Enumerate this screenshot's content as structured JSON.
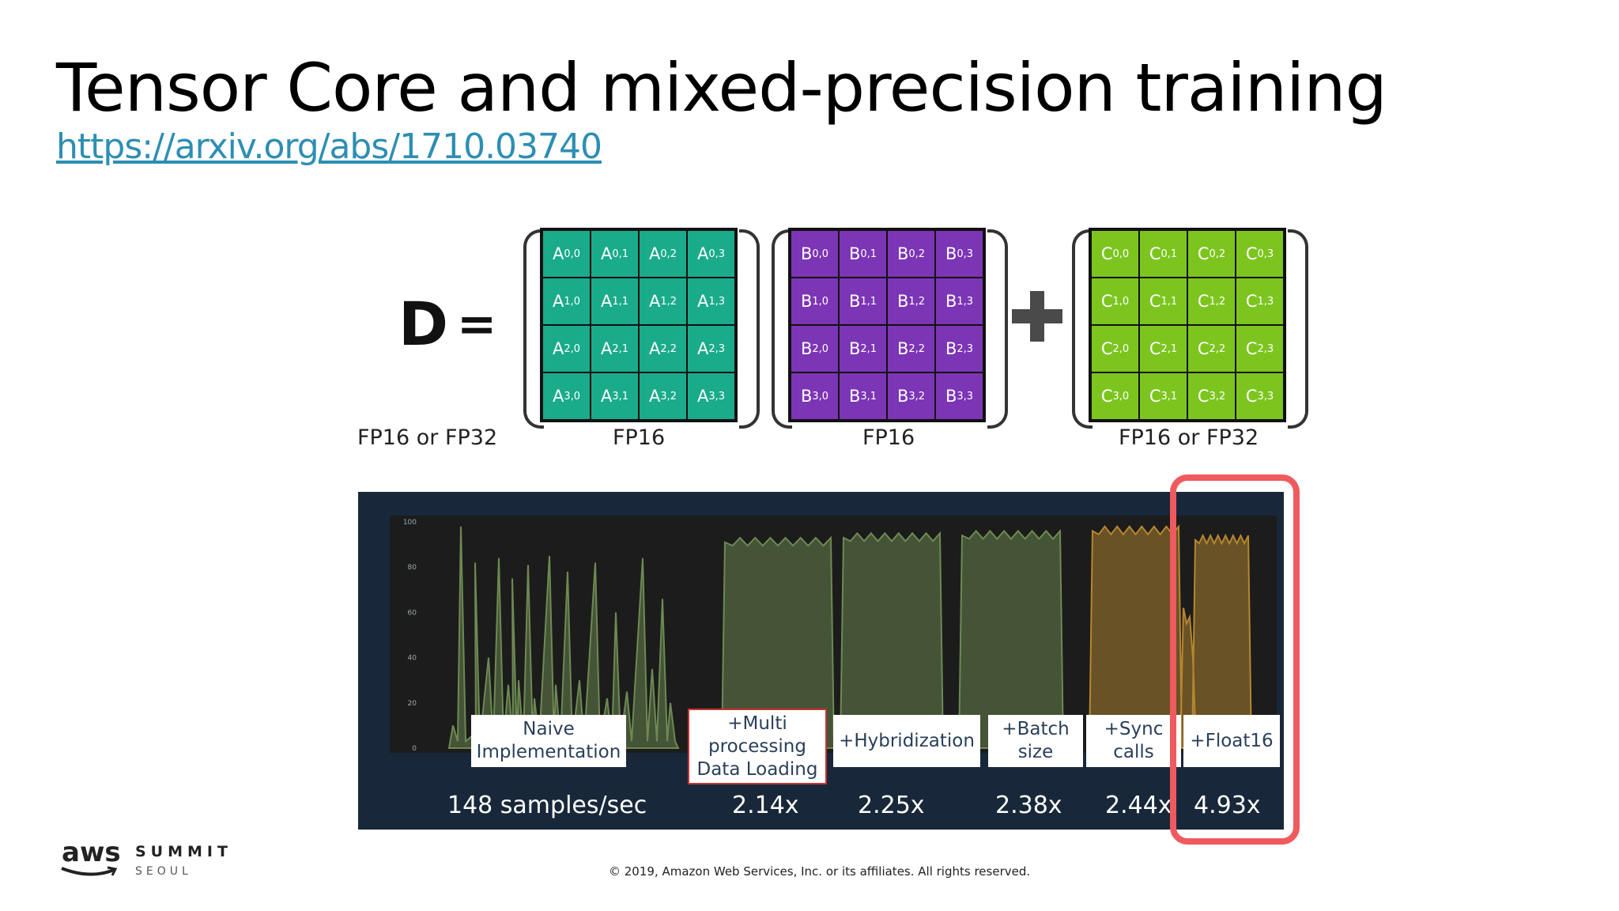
{
  "slide": {
    "title": "Tensor Core and mixed-precision training",
    "link": "https://arxiv.org/abs/1710.03740"
  },
  "equation": {
    "lhs": "D",
    "equals": "=",
    "lhs_precision": "FP16 or FP32",
    "matrices": [
      {
        "letter": "A",
        "precision": "FP16",
        "color": "#1aab8a"
      },
      {
        "letter": "B",
        "precision": "FP16",
        "color": "#7c35b5"
      },
      {
        "letter": "C",
        "precision": "FP16 or FP32",
        "color": "#7cc51f"
      }
    ]
  },
  "chart_data": {
    "type": "area",
    "background": "#18283a",
    "y_ticks": [
      "100",
      "80",
      "60",
      "40",
      "20",
      "0"
    ],
    "ylim": [
      0,
      100
    ],
    "phases": [
      {
        "label": "Naive\nImplementation",
        "metric": "148 samples/sec",
        "color": "#6d8a52",
        "profile": "spiky",
        "approx_peak": 98
      },
      {
        "label": "+Multi\nprocessing\nData Loading",
        "metric": "2.14x",
        "color": "#6d8a52",
        "profile": "plateau",
        "approx_level": 91
      },
      {
        "label": "+Hybridization",
        "metric": "2.25x",
        "color": "#6d8a52",
        "profile": "plateau",
        "approx_level": 93
      },
      {
        "label": "+Batch\nsize",
        "metric": "2.38x",
        "color": "#6d8a52",
        "profile": "plateau",
        "approx_level": 94
      },
      {
        "label": "+Sync\ncalls",
        "metric": "2.44x",
        "color": "#b5872f",
        "profile": "plateau",
        "approx_level": 96
      },
      {
        "label": "+Float16",
        "metric": "4.93x",
        "color": "#b5872f",
        "profile": "plateau",
        "approx_level": 92
      }
    ],
    "highlight_color": "#ef5a5e"
  },
  "footer": {
    "logo_text": "aws",
    "event": "SUMMIT",
    "city": "SEOUL",
    "copyright": "© 2019, Amazon Web Services, Inc. or its affiliates. All rights reserved."
  }
}
